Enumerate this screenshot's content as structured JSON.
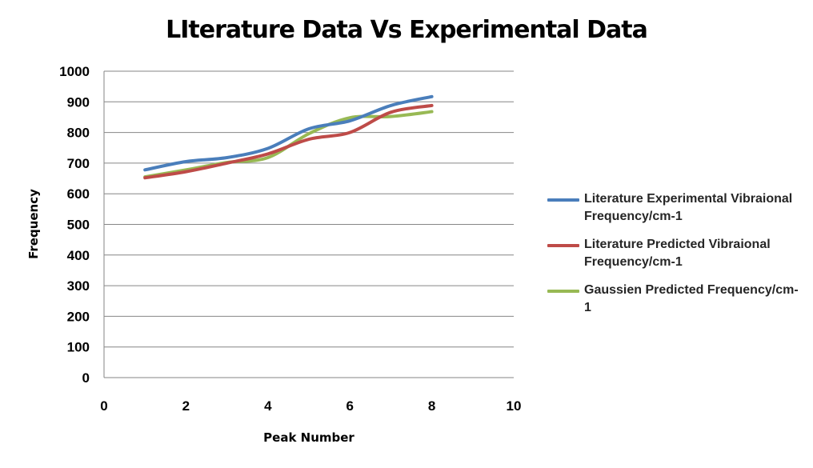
{
  "chart_data": {
    "type": "line",
    "title": "LIterature Data Vs Experimental Data",
    "xlabel": "Peak Number",
    "ylabel": "Frequency",
    "xlim": [
      0,
      10
    ],
    "ylim": [
      0,
      1000
    ],
    "x_ticks": [
      0,
      2,
      4,
      6,
      8,
      10
    ],
    "y_ticks": [
      0,
      100,
      200,
      300,
      400,
      500,
      600,
      700,
      800,
      900,
      1000
    ],
    "grid": "horizontal",
    "legend_position": "right",
    "x": [
      1,
      2,
      3,
      4,
      5,
      6,
      7,
      8
    ],
    "series": [
      {
        "name": "Literature Experimental Vibraional Frequency/cm-1",
        "color": "#4a7ebb",
        "values": [
          678,
          705,
          718,
          748,
          812,
          838,
          888,
          917
        ]
      },
      {
        "name": " Literature Predicted Vibraional Frequency/cm-1",
        "color": "#be4b48",
        "values": [
          652,
          672,
          700,
          730,
          778,
          800,
          866,
          888
        ]
      },
      {
        "name": "Gaussien Predicted Frequency/cm-1",
        "color": "#98b954",
        "values": [
          655,
          678,
          702,
          718,
          796,
          848,
          852,
          868
        ]
      }
    ]
  }
}
